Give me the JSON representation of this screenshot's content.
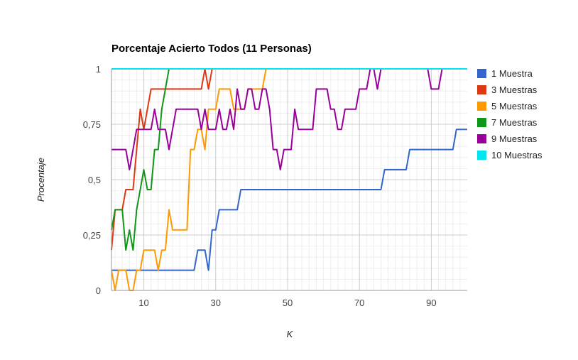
{
  "chart_data": {
    "type": "line",
    "title": "Porcentaje Acierto Todos (11 Personas)",
    "xlabel": "K",
    "ylabel": "Procentaje",
    "xlim": [
      1,
      100
    ],
    "ylim": [
      0,
      1
    ],
    "x_ticks": [
      10,
      30,
      50,
      70,
      90
    ],
    "x_tick_labels": [
      "10",
      "30",
      "50",
      "70",
      "90"
    ],
    "y_ticks": [
      0,
      0.25,
      0.5,
      0.75,
      1
    ],
    "y_tick_labels": [
      "0",
      "0,25",
      "0,5",
      "0,75",
      "1"
    ],
    "grid": true,
    "legend_position": "right",
    "series": [
      {
        "name": "1 Muestra",
        "color": "#3366cc",
        "points": [
          [
            1,
            0.091
          ],
          [
            24,
            0.091
          ],
          [
            25,
            0.182
          ],
          [
            27,
            0.182
          ],
          [
            28,
            0.091
          ],
          [
            29,
            0.273
          ],
          [
            30,
            0.273
          ],
          [
            31,
            0.364
          ],
          [
            36,
            0.364
          ],
          [
            37,
            0.455
          ],
          [
            76,
            0.455
          ],
          [
            77,
            0.545
          ],
          [
            83,
            0.545
          ],
          [
            84,
            0.636
          ],
          [
            96,
            0.636
          ],
          [
            97,
            0.727
          ],
          [
            100,
            0.727
          ]
        ]
      },
      {
        "name": "3 Muestras",
        "color": "#dc3912",
        "points": [
          [
            1,
            0.182
          ],
          [
            2,
            0.364
          ],
          [
            4,
            0.364
          ],
          [
            5,
            0.455
          ],
          [
            7,
            0.455
          ],
          [
            8,
            0.636
          ],
          [
            9,
            0.818
          ],
          [
            10,
            0.727
          ],
          [
            11,
            0.818
          ],
          [
            12,
            0.909
          ],
          [
            26,
            0.909
          ],
          [
            27,
            1
          ],
          [
            28,
            0.909
          ],
          [
            29,
            1
          ]
        ]
      },
      {
        "name": "5 Muestras",
        "color": "#ff9900",
        "points": [
          [
            1,
            0.091
          ],
          [
            2,
            0
          ],
          [
            3,
            0.091
          ],
          [
            5,
            0.091
          ],
          [
            6,
            0
          ],
          [
            7,
            0
          ],
          [
            8,
            0.091
          ],
          [
            9,
            0.091
          ],
          [
            10,
            0.182
          ],
          [
            13,
            0.182
          ],
          [
            14,
            0.091
          ],
          [
            15,
            0.182
          ],
          [
            16,
            0.182
          ],
          [
            17,
            0.364
          ],
          [
            18,
            0.273
          ],
          [
            22,
            0.273
          ],
          [
            23,
            0.636
          ],
          [
            24,
            0.636
          ],
          [
            25,
            0.727
          ],
          [
            26,
            0.727
          ],
          [
            27,
            0.636
          ],
          [
            28,
            0.818
          ],
          [
            30,
            0.818
          ],
          [
            31,
            0.909
          ],
          [
            34,
            0.909
          ],
          [
            35,
            0.818
          ],
          [
            38,
            0.818
          ],
          [
            39,
            0.909
          ],
          [
            43,
            0.909
          ],
          [
            44,
            1
          ]
        ]
      },
      {
        "name": "7 Muestras",
        "color": "#109618",
        "points": [
          [
            1,
            0.273
          ],
          [
            2,
            0.364
          ],
          [
            4,
            0.364
          ],
          [
            5,
            0.182
          ],
          [
            6,
            0.273
          ],
          [
            7,
            0.182
          ],
          [
            8,
            0.364
          ],
          [
            9,
            0.455
          ],
          [
            10,
            0.545
          ],
          [
            11,
            0.455
          ],
          [
            12,
            0.455
          ],
          [
            13,
            0.636
          ],
          [
            14,
            0.636
          ],
          [
            15,
            0.818
          ],
          [
            16,
            0.909
          ],
          [
            17,
            1
          ]
        ]
      },
      {
        "name": "9 Muestras",
        "color": "#990099",
        "points": [
          [
            1,
            0.636
          ],
          [
            5,
            0.636
          ],
          [
            6,
            0.545
          ],
          [
            7,
            0.636
          ],
          [
            8,
            0.727
          ],
          [
            12,
            0.727
          ],
          [
            13,
            0.818
          ],
          [
            14,
            0.727
          ],
          [
            16,
            0.727
          ],
          [
            17,
            0.636
          ],
          [
            18,
            0.727
          ],
          [
            19,
            0.818
          ],
          [
            25,
            0.818
          ],
          [
            26,
            0.727
          ],
          [
            27,
            0.818
          ],
          [
            28,
            0.727
          ],
          [
            30,
            0.727
          ],
          [
            31,
            0.818
          ],
          [
            32,
            0.727
          ],
          [
            33,
            0.727
          ],
          [
            34,
            0.818
          ],
          [
            35,
            0.727
          ],
          [
            36,
            0.909
          ],
          [
            37,
            0.818
          ],
          [
            38,
            0.818
          ],
          [
            39,
            0.909
          ],
          [
            40,
            0.909
          ],
          [
            41,
            0.818
          ],
          [
            42,
            0.818
          ],
          [
            43,
            0.909
          ],
          [
            44,
            0.909
          ],
          [
            45,
            0.818
          ],
          [
            46,
            0.636
          ],
          [
            47,
            0.636
          ],
          [
            48,
            0.545
          ],
          [
            49,
            0.636
          ],
          [
            51,
            0.636
          ],
          [
            52,
            0.818
          ],
          [
            53,
            0.727
          ],
          [
            57,
            0.727
          ],
          [
            58,
            0.909
          ],
          [
            61,
            0.909
          ],
          [
            62,
            0.818
          ],
          [
            63,
            0.818
          ],
          [
            64,
            0.727
          ],
          [
            65,
            0.727
          ],
          [
            66,
            0.818
          ],
          [
            69,
            0.818
          ],
          [
            70,
            0.909
          ],
          [
            72,
            0.909
          ],
          [
            73,
            1
          ],
          [
            74,
            1
          ],
          [
            75,
            0.909
          ],
          [
            76,
            1
          ],
          [
            89,
            1
          ],
          [
            90,
            0.909
          ],
          [
            92,
            0.909
          ],
          [
            93,
            1
          ],
          [
            100,
            1
          ]
        ]
      },
      {
        "name": "10 Muestras",
        "color": "#00e5ee",
        "points": [
          [
            1,
            1
          ],
          [
            100,
            1
          ]
        ]
      }
    ]
  }
}
